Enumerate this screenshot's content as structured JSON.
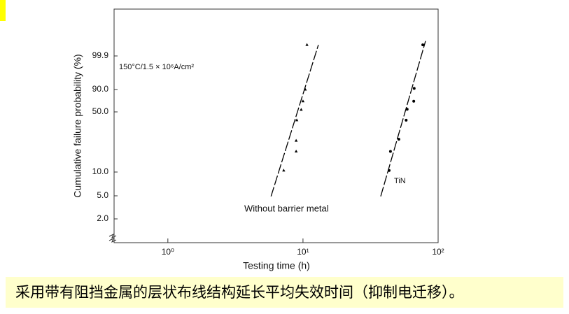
{
  "chart_data": {
    "type": "scatter",
    "ylabel": "Cumulative failure probability (%)",
    "xlabel": "Testing time (h)",
    "annotation": "150°C/1.5 × 10⁶A/cm²",
    "caption": "采用带有阻挡金属的层状布线结构延长平均失效时间（抑制电迁移）。",
    "log_x": true,
    "y_scale": "probability",
    "xlim": [
      0.4,
      100
    ],
    "xticks": [
      {
        "value": 1,
        "label": "10⁰"
      },
      {
        "value": 10,
        "label": "10¹"
      },
      {
        "value": 100,
        "label": "10²"
      }
    ],
    "ylim": [
      1,
      99.99
    ],
    "yticks": [
      {
        "value": 2,
        "label": "2.0"
      },
      {
        "value": 5,
        "label": "5.0"
      },
      {
        "value": 10,
        "label": "10.0"
      },
      {
        "value": 50,
        "label": "50.0"
      },
      {
        "value": 90,
        "label": "90.0"
      },
      99.9
    ],
    "series": [
      {
        "name": "Without barrier metal",
        "color": "#000000",
        "marker": "triangle",
        "x": [
          7.2,
          8.9,
          8.9,
          9.0,
          9.7,
          10,
          10.4,
          10.7
        ],
        "values": [
          10.6,
          20,
          27,
          43,
          55,
          73,
          90,
          99.94
        ],
        "fit_x": [
          5.8,
          13
        ],
        "fit_values": [
          4.9,
          99.94
        ]
      },
      {
        "name": "TiN",
        "color": "#000000",
        "marker": "circle",
        "x": [
          43.4,
          44.4,
          51.2,
          58,
          59,
          66,
          66.5,
          77
        ],
        "values": [
          10.6,
          20,
          28,
          43,
          56,
          73,
          91,
          99.94
        ],
        "fit_x": [
          37.6,
          80.7
        ],
        "fit_values": [
          4.9,
          99.95
        ]
      }
    ]
  }
}
